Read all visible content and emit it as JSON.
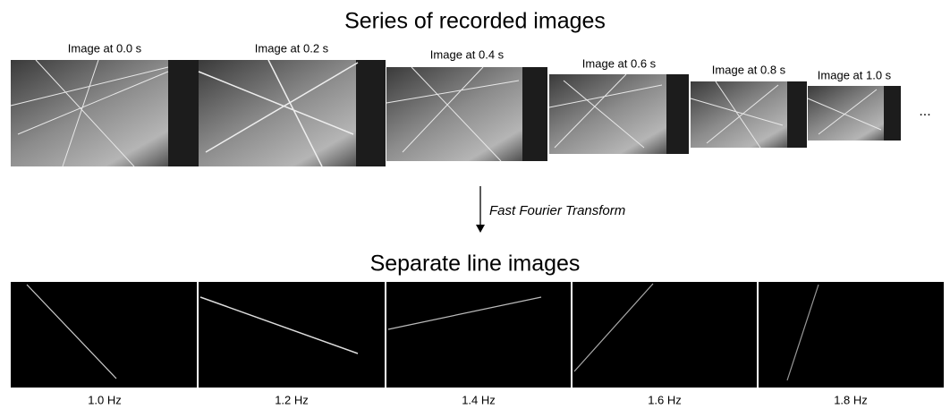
{
  "header": {
    "title": "Series of recorded images"
  },
  "images": [
    {
      "label": "Image at 0.0 s"
    },
    {
      "label": "Image at 0.2 s"
    },
    {
      "label": "Image at 0.4 s"
    },
    {
      "label": "Image at 0.6 s"
    },
    {
      "label": "Image at 0.8 s"
    },
    {
      "label": "Image at 1.0 s"
    }
  ],
  "ellipsis": "...",
  "arrow": {
    "label": "Fast Fourier Transform"
  },
  "result": {
    "title": "Separate line images",
    "panels": [
      {
        "label": "1.0 Hz"
      },
      {
        "label": "1.2 Hz"
      },
      {
        "label": "1.4 Hz"
      },
      {
        "label": "1.6 Hz"
      },
      {
        "label": "1.8 Hz"
      }
    ]
  }
}
